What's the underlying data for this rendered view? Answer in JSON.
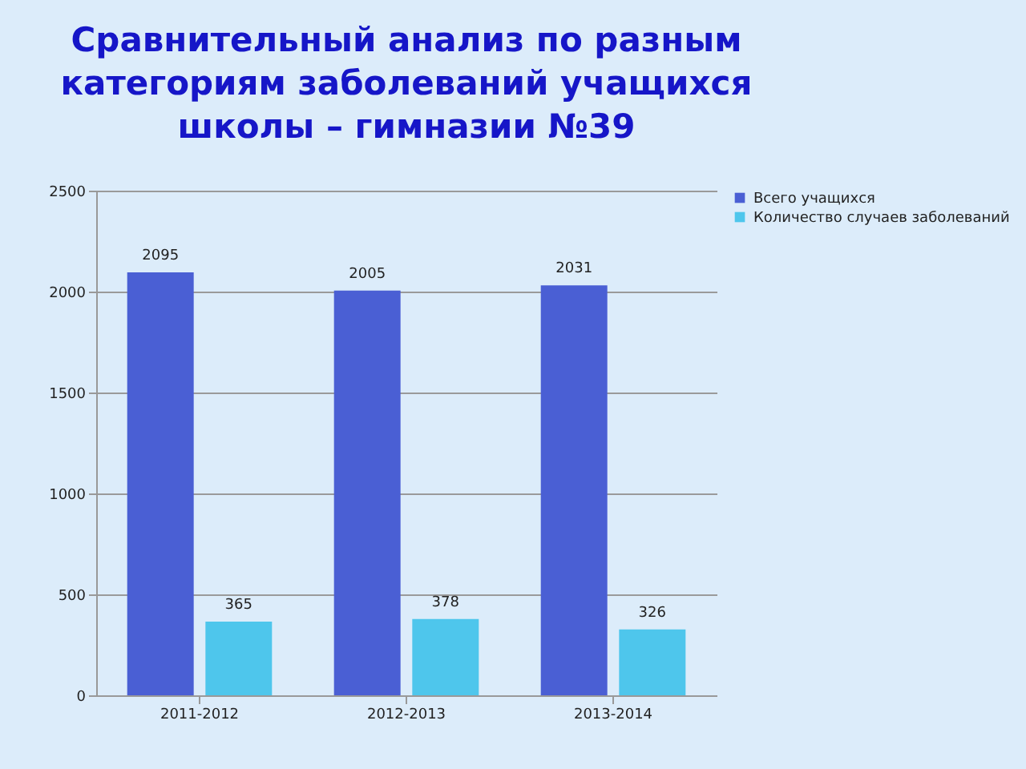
{
  "chart_data": {
    "type": "bar",
    "title": "Сравнительный анализ по разным\nкатегориям заболеваний учащихся\nшколы – гимназии №39",
    "categories": [
      "2011-2012",
      "2012-2013",
      "2013-2014"
    ],
    "series": [
      {
        "name": "Всего учащихся",
        "color": "#4a5fd4",
        "values": [
          2095,
          2005,
          2031
        ]
      },
      {
        "name": "Количество случаев заболеваний",
        "color": "#4ec6ec",
        "values": [
          365,
          378,
          326
        ]
      }
    ],
    "ylim": [
      0,
      2500
    ],
    "yticks": [
      0,
      500,
      1000,
      1500,
      2000,
      2500
    ],
    "grid": "y",
    "legend": "right",
    "data_labels": true
  }
}
